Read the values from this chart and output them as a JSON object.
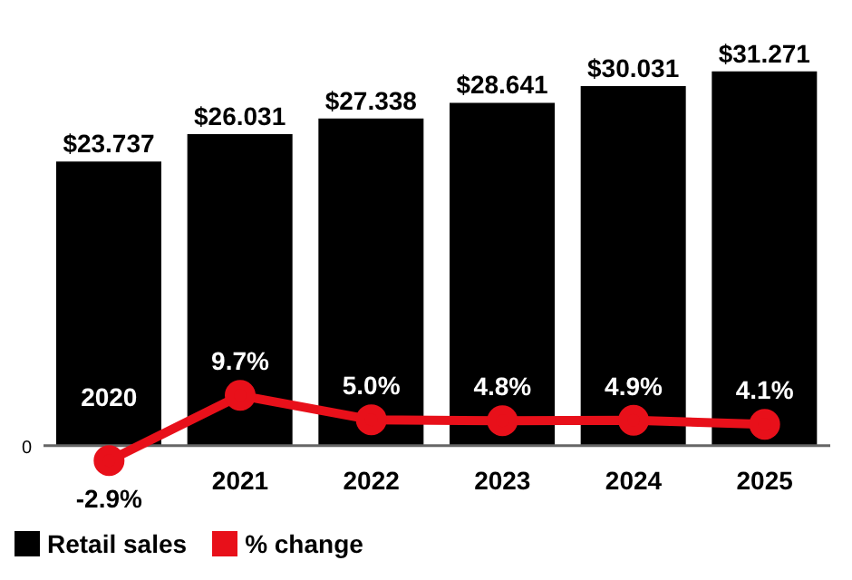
{
  "chart_data": {
    "type": "bar",
    "categories": [
      "2020",
      "2021",
      "2022",
      "2023",
      "2024",
      "2025"
    ],
    "series": [
      {
        "name": "Retail sales",
        "color": "#000000",
        "values": [
          23.737,
          26.031,
          27.338,
          28.641,
          30.031,
          31.271
        ],
        "value_labels": [
          "$23.737",
          "$26.031",
          "$27.338",
          "$28.641",
          "$30.031",
          "$31.271"
        ]
      },
      {
        "name": "% change",
        "type": "line",
        "axis": "y2",
        "color": "#e8101a",
        "values": [
          -2.9,
          9.7,
          5.0,
          4.8,
          4.9,
          4.1
        ],
        "value_labels": [
          "-2.9%",
          "9.7%",
          "5.0%",
          "4.8%",
          "4.9%",
          "4.1%"
        ]
      }
    ],
    "annotations": [
      "0"
    ],
    "legend": "bottom left",
    "marker": "circle",
    "line_style": "solid"
  }
}
